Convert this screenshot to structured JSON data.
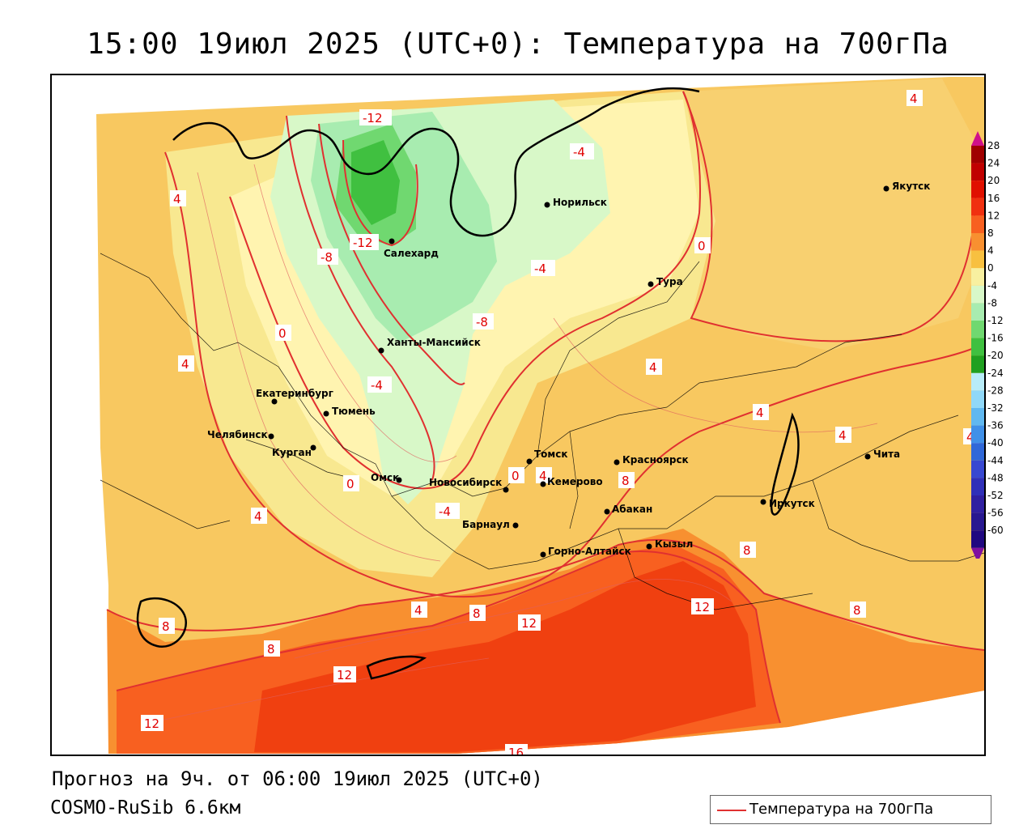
{
  "title": "15:00 19июл 2025 (UTC+0): Температура на 700гПа",
  "forecast_line": "Прогноз на 9ч. от 06:00 19июл 2025 (UTC+0)",
  "model_line": "COSMO-RuSib 6.6км",
  "legend": {
    "label": "Температура на 700гПа",
    "line_color": "#e03030"
  },
  "colorbar": {
    "levels": [
      "28",
      "24",
      "20",
      "16",
      "12",
      "8",
      "4",
      "0",
      "-4",
      "-8",
      "-12",
      "-16",
      "-20",
      "-24",
      "-28",
      "-32",
      "-36",
      "-40",
      "-44",
      "-48",
      "-52",
      "-56",
      "-60"
    ],
    "colors": [
      "#a00000",
      "#c00000",
      "#e01000",
      "#f03010",
      "#f86020",
      "#f89030",
      "#f8c040",
      "#f8f0a0",
      "#d8f8c8",
      "#a8ecb0",
      "#70d870",
      "#40c040",
      "#20a020",
      "#b8ecf8",
      "#90d8f8",
      "#60b8f0",
      "#4090e8",
      "#3068d8",
      "#3848d0",
      "#3030b8",
      "#3020a0",
      "#281890",
      "#200880"
    ],
    "top_arrow_color": "#d0108a",
    "bottom_arrow_color": "#8010a0"
  },
  "cities": [
    {
      "name": "Якутск"
    },
    {
      "name": "Норильск"
    },
    {
      "name": "Салехард"
    },
    {
      "name": "Тура"
    },
    {
      "name": "Ханты-Мансийск"
    },
    {
      "name": "Екатеринбург"
    },
    {
      "name": "Тюмень"
    },
    {
      "name": "Челябинск"
    },
    {
      "name": "Курган"
    },
    {
      "name": "Томск"
    },
    {
      "name": "Красноярск"
    },
    {
      "name": "Чита"
    },
    {
      "name": "Омск"
    },
    {
      "name": "Новосибирск"
    },
    {
      "name": "Кемерово"
    },
    {
      "name": "Иркутск"
    },
    {
      "name": "Абакан"
    },
    {
      "name": "Барнаул"
    },
    {
      "name": "Горно-Алтайск"
    },
    {
      "name": "Кызыл"
    }
  ],
  "isoline_labels": [
    "-12",
    "-12",
    "-8",
    "-4",
    "-4",
    "-8",
    "-4",
    "0",
    "0",
    "0",
    "0",
    "4",
    "4",
    "4",
    "4",
    "4",
    "4",
    "4",
    "4",
    "8",
    "8",
    "8",
    "8",
    "8",
    "8",
    "12",
    "12",
    "12",
    "12",
    "16",
    "4",
    "4",
    "-4"
  ]
}
